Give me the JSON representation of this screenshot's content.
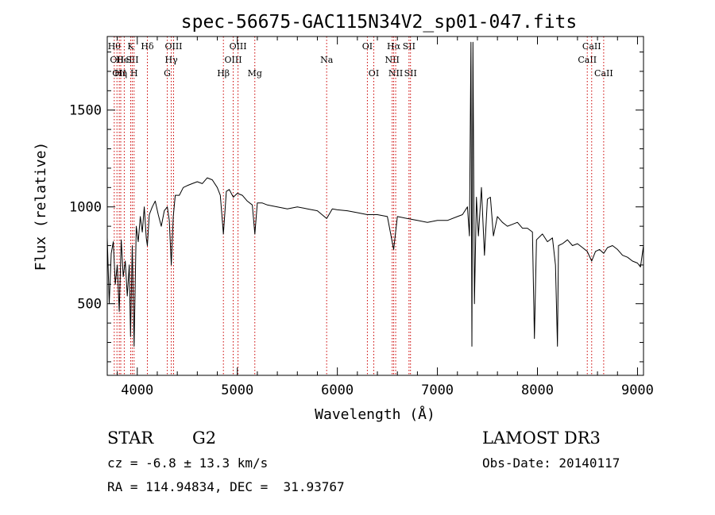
{
  "chart_data": {
    "type": "line",
    "title": "spec-56675-GAC115N34V2_sp01-047.fits",
    "xlabel": "Wavelength (Å)",
    "ylabel": "Flux (relative)",
    "xlim": [
      3700,
      9060
    ],
    "ylim": [
      130,
      1880
    ],
    "xticks": [
      4000,
      5000,
      6000,
      7000,
      8000,
      9000
    ],
    "yticks": [
      500,
      1000,
      1500
    ],
    "grid": false,
    "line_color": "#000000",
    "marker_color": "#cc0000",
    "series": [
      {
        "x": [
          3700,
          3720,
          3740,
          3760,
          3780,
          3800,
          3820,
          3840,
          3860,
          3880,
          3900,
          3920,
          3933,
          3950,
          3968,
          3990,
          4010,
          4030,
          4050,
          4070,
          4090,
          4101,
          4120,
          4150,
          4180,
          4210,
          4240,
          4270,
          4300,
          4320,
          4340,
          4360,
          4380,
          4420,
          4460,
          4500,
          4550,
          4600,
          4650,
          4700,
          4750,
          4800,
          4830,
          4861,
          4890,
          4920,
          4960,
          5000,
          5050,
          5100,
          5150,
          5175,
          5200,
          5250,
          5300,
          5400,
          5500,
          5600,
          5700,
          5800,
          5893,
          5950,
          6000,
          6100,
          6200,
          6300,
          6400,
          6500,
          6563,
          6600,
          6700,
          6800,
          6900,
          7000,
          7100,
          7200,
          7250,
          7300,
          7320,
          7335,
          7345,
          7355,
          7370,
          7390,
          7410,
          7440,
          7470,
          7500,
          7530,
          7560,
          7600,
          7650,
          7700,
          7750,
          7800,
          7850,
          7900,
          7950,
          7970,
          7990,
          8050,
          8100,
          8150,
          8180,
          8200,
          8210,
          8250,
          8300,
          8350,
          8400,
          8450,
          8498,
          8542,
          8580,
          8620,
          8662,
          8700,
          8750,
          8800,
          8850,
          8900,
          8950,
          9000,
          9030,
          9060
        ],
        "y": [
          840,
          500,
          760,
          820,
          600,
          700,
          460,
          830,
          640,
          720,
          540,
          700,
          330,
          800,
          280,
          900,
          820,
          950,
          870,
          1000,
          840,
          800,
          960,
          1000,
          1030,
          960,
          900,
          980,
          1000,
          930,
          700,
          950,
          1060,
          1060,
          1100,
          1110,
          1120,
          1130,
          1120,
          1150,
          1140,
          1100,
          1060,
          860,
          1080,
          1090,
          1050,
          1070,
          1060,
          1030,
          1010,
          860,
          1020,
          1020,
          1010,
          1000,
          990,
          1000,
          990,
          980,
          940,
          990,
          985,
          980,
          970,
          960,
          960,
          950,
          780,
          950,
          940,
          930,
          920,
          930,
          930,
          950,
          960,
          1000,
          850,
          1850,
          280,
          1850,
          500,
          1050,
          850,
          1100,
          750,
          1040,
          1050,
          850,
          950,
          920,
          900,
          910,
          920,
          890,
          890,
          870,
          320,
          830,
          860,
          820,
          840,
          700,
          280,
          800,
          810,
          830,
          800,
          810,
          790,
          770,
          720,
          770,
          780,
          760,
          790,
          800,
          780,
          750,
          740,
          720,
          710,
          690,
          800
        ]
      }
    ],
    "markers": [
      {
        "x": 3770,
        "label": "Hθ",
        "row": 1
      },
      {
        "x": 3797,
        "label": "OII",
        "row": 2
      },
      {
        "x": 3820,
        "label": "OII",
        "row": 3
      },
      {
        "x": 3835,
        "label": "Hη",
        "row": 3
      },
      {
        "x": 3870,
        "label": "HeI",
        "row": 2
      },
      {
        "x": 3934,
        "label": "K",
        "row": 1
      },
      {
        "x": 3950,
        "label": "SII",
        "row": 2
      },
      {
        "x": 3968,
        "label": "H",
        "row": 3
      },
      {
        "x": 4101,
        "label": "Hδ",
        "row": 1
      },
      {
        "x": 4300,
        "label": "G",
        "row": 3
      },
      {
        "x": 4340,
        "label": "Hγ",
        "row": 2
      },
      {
        "x": 4363,
        "label": "OIII",
        "row": 1
      },
      {
        "x": 4861,
        "label": "Hβ",
        "row": 3
      },
      {
        "x": 4959,
        "label": "OIII",
        "row": 2
      },
      {
        "x": 5007,
        "label": "OIII",
        "row": 1
      },
      {
        "x": 5175,
        "label": "Mg",
        "row": 3
      },
      {
        "x": 5893,
        "label": "Na",
        "row": 2
      },
      {
        "x": 6300,
        "label": "OI",
        "row": 1
      },
      {
        "x": 6364,
        "label": "OI",
        "row": 3
      },
      {
        "x": 6548,
        "label": "NII",
        "row": 2
      },
      {
        "x": 6563,
        "label": "Hα",
        "row": 1
      },
      {
        "x": 6583,
        "label": "NII",
        "row": 3
      },
      {
        "x": 6716,
        "label": "SII",
        "row": 1
      },
      {
        "x": 6731,
        "label": "SII",
        "row": 3
      },
      {
        "x": 8498,
        "label": "CaII",
        "row": 2
      },
      {
        "x": 8542,
        "label": "CaII",
        "row": 1
      },
      {
        "x": 8662,
        "label": "CaII",
        "row": 3
      }
    ]
  },
  "info": {
    "object_class": "STAR",
    "subclass": "G2",
    "survey": "LAMOST DR3",
    "redshift": "cz = -6.8 ± 13.3 km/s",
    "obs_date": "Obs-Date: 20140117",
    "coords": "RA = 114.94834, DEC =  31.93767"
  }
}
